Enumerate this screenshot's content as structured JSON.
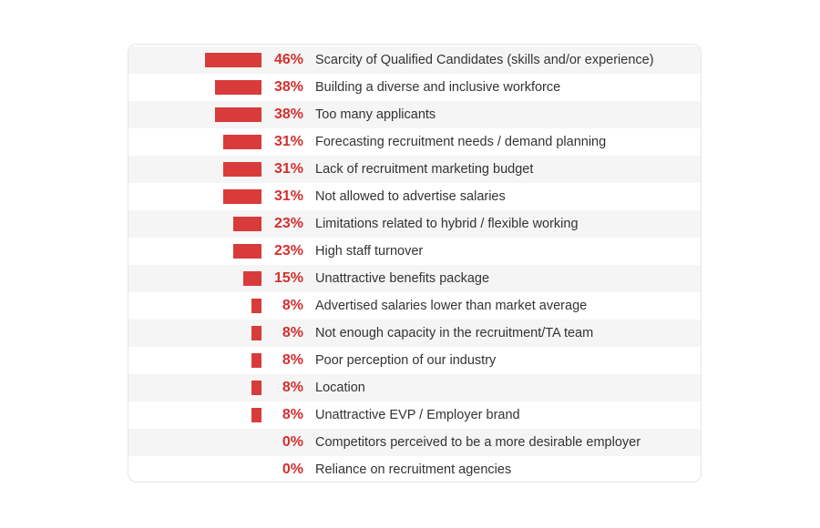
{
  "chart_data": {
    "type": "bar",
    "orientation": "horizontal",
    "title": "",
    "xlabel": "",
    "ylabel": "",
    "xlim": [
      0,
      46
    ],
    "grid": false,
    "colors": {
      "bar": "#d93b3b",
      "value_text": "#d32f2f",
      "label_text": "#333333",
      "row_shade": "#f5f5f5"
    },
    "categories": [
      "Scarcity of Qualified Candidates (skills and/or experience)",
      "Building a diverse and inclusive workforce",
      "Too many applicants",
      "Forecasting recruitment needs / demand planning",
      "Lack of recruitment marketing budget",
      "Not allowed to advertise salaries",
      "Limitations related to hybrid / flexible working",
      "High staff turnover",
      "Unattractive benefits package",
      "Advertised salaries lower than market average",
      "Not enough capacity in the recruitment/TA team",
      "Poor perception of our industry",
      "Location",
      "Unattractive EVP / Employer brand",
      "Competitors perceived to be a more desirable employer",
      "Reliance on recruitment agencies"
    ],
    "values": [
      46,
      38,
      38,
      31,
      31,
      31,
      23,
      23,
      15,
      8,
      8,
      8,
      8,
      8,
      0,
      0
    ],
    "value_labels": [
      "46%",
      "38%",
      "38%",
      "31%",
      "31%",
      "31%",
      "23%",
      "23%",
      "15%",
      "8%",
      "8%",
      "8%",
      "8%",
      "8%",
      "0%",
      "0%"
    ]
  }
}
